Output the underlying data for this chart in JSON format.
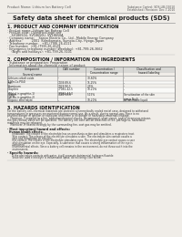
{
  "bg_color": "#f0ede8",
  "page_color": "#f8f6f2",
  "header_left": "Product Name: Lithium Ion Battery Cell",
  "header_right1": "Substance Control: SDS-LIB-C0010",
  "header_right2": "Established / Revision: Dec.7.2010",
  "main_title": "Safety data sheet for chemical products (SDS)",
  "s1_title": "1. PRODUCT AND COMPANY IDENTIFICATION",
  "s1_lines": [
    "· Product name: Lithium Ion Battery Cell",
    "· Product code: Cylindrical-type cell",
    "    SV18650U, SV18650U, SV18650A",
    "· Company name:    Sanyo Electric Co., Ltd., Mobile Energy Company",
    "· Address:         2001  Kamikamata, Sumoto-City, Hyogo, Japan",
    "· Telephone number:   +81-(799)-26-4111",
    "· Fax number:  +81-(799)-26-4129",
    "· Emergency telephone number (Weekday): +81-799-26-3662",
    "    (Night and holidays): +81-799-26-3101"
  ],
  "s2_title": "2. COMPOSITION / INFORMATION ON INGREDIENTS",
  "s2_sub1": "· Substance or preparation: Preparation",
  "s2_sub2": "· Information about the chemical nature of product:",
  "tbl_h1": [
    "Component",
    "CAS number",
    "Concentration /\nConcentration range",
    "Classification and\nhazard labeling"
  ],
  "tbl_h2": "Several name",
  "tbl_rows": [
    [
      "Lithium cobalt oxide\n(LiMn-Co-PO4)",
      "-",
      "30-60%",
      "-"
    ],
    [
      "Iron",
      "7439-89-6",
      "15-25%",
      "-"
    ],
    [
      "Aluminum",
      "7429-90-5",
      "2-5%",
      "-"
    ],
    [
      "Graphite\n(Metal in graphite-1)\n(Al-Mo in graphite-2)",
      "77082-42-5\n77082-44-0",
      "10-20%",
      "-"
    ],
    [
      "Copper",
      "7440-50-8",
      "5-15%",
      "Sensitization of the skin\ngroup No.2"
    ],
    [
      "Organic electrolyte",
      "-",
      "10-20%",
      "Inflammable liquid"
    ]
  ],
  "s3_title": "3. HAZARDS IDENTIFICATION",
  "s3_para": [
    "For the battery cell, chemical materials are stored in a hermetically sealed metal case, designed to withstand",
    "temperatures or pressures encountered during normal use. As a result, during normal use, there is no",
    "physical danger of ignition or explosion and there is no danger of hazardous materials leakage.",
    "    However, if exposed to a fire, added mechanical shocks, decomposed, short circuit, and/or strenuous misuse,",
    "the gas release valve will be operated. The battery cell case will be breached of fire, pathogens, hazardous",
    "materials may be released.",
    "    Moreover, if heated strongly by the surrounding fire, soot gas may be emitted."
  ],
  "s3_b1": "· Most important hazard and effects:",
  "s3_human": "Human health effects:",
  "s3_human_lines": [
    "    Inhalation: The release of the electrolyte has an anesthesia action and stimulates a respiratory tract.",
    "    Skin contact: The release of the electrolyte stimulates a skin. The electrolyte skin contact causes a",
    "    sore and stimulation on the skin.",
    "    Eye contact: The release of the electrolyte stimulates eyes. The electrolyte eye contact causes a sore",
    "    and stimulation on the eye. Especially, a substance that causes a strong inflammation of the eye is",
    "    contained.",
    "    Environmental effects: Since a battery cell remains in the environment, do not throw out it into the",
    "    environment."
  ],
  "s3_spec": "· Specific hazards:",
  "s3_spec_lines": [
    "    If the electrolyte contacts with water, it will generate detrimental hydrogen fluoride.",
    "    Since the used electrolyte is inflammable liquid, do not bring close to fire."
  ]
}
